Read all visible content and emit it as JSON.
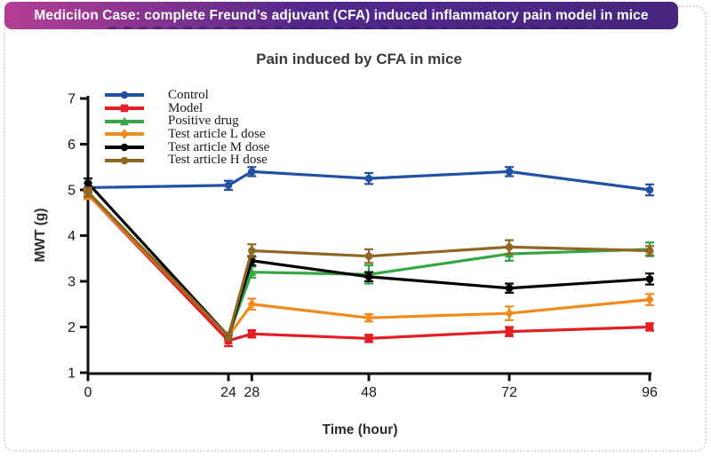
{
  "banner": {
    "text": "Medicilon Case: complete Freund’s adjuvant (CFA) induced inflammatory pain model in mice",
    "text_color": "#ffffff",
    "gradient_left": "#b53e94",
    "gradient_mid": "#52288c",
    "gradient_right": "#472580"
  },
  "chart_data": {
    "type": "line",
    "title": "Pain induced by CFA in mice",
    "xlabel": "Time (hour)",
    "ylabel": "MWT (g)",
    "x": [
      0,
      24,
      28,
      48,
      72,
      96
    ],
    "xtick_labels": [
      "0",
      "24",
      "28",
      "48",
      "72",
      "96"
    ],
    "ytick_labels": [
      "1",
      "2",
      "3",
      "4",
      "5",
      "6",
      "7"
    ],
    "ylim": [
      1,
      7
    ],
    "grid": false,
    "legend_position": "top-left",
    "error_bars": true,
    "axis_color": "#111111",
    "series": [
      {
        "name": "Control",
        "color": "#2150a5",
        "marker": "circle",
        "values": [
          5.05,
          5.1,
          5.4,
          5.25,
          5.4,
          5.0
        ],
        "errors": [
          0.1,
          0.1,
          0.1,
          0.12,
          0.1,
          0.12
        ]
      },
      {
        "name": "Model",
        "color": "#e31e24",
        "marker": "square",
        "values": [
          4.9,
          1.7,
          1.85,
          1.75,
          1.9,
          2.0
        ],
        "errors": [
          0.1,
          0.12,
          0.08,
          0.08,
          0.1,
          0.08
        ]
      },
      {
        "name": "Positive drug",
        "color": "#33a744",
        "marker": "triangle",
        "values": [
          4.95,
          1.8,
          3.2,
          3.15,
          3.6,
          3.7
        ],
        "errors": [
          0.1,
          0.08,
          0.12,
          0.2,
          0.15,
          0.15
        ]
      },
      {
        "name": "Test article L dose",
        "color": "#f28a1c",
        "marker": "diamond",
        "values": [
          4.9,
          1.8,
          2.5,
          2.2,
          2.3,
          2.6
        ],
        "errors": [
          0.1,
          0.08,
          0.12,
          0.08,
          0.15,
          0.12
        ]
      },
      {
        "name": "Test article M dose",
        "color": "#000000",
        "marker": "circle",
        "values": [
          5.15,
          1.8,
          3.45,
          3.1,
          2.85,
          3.05
        ],
        "errors": [
          0.1,
          0.08,
          0.1,
          0.1,
          0.1,
          0.12
        ]
      },
      {
        "name": "Test article H dose",
        "color": "#8f6722",
        "marker": "circle",
        "values": [
          4.95,
          1.8,
          3.67,
          3.55,
          3.75,
          3.67
        ],
        "errors": [
          0.1,
          0.08,
          0.14,
          0.15,
          0.15,
          0.1
        ]
      }
    ]
  }
}
